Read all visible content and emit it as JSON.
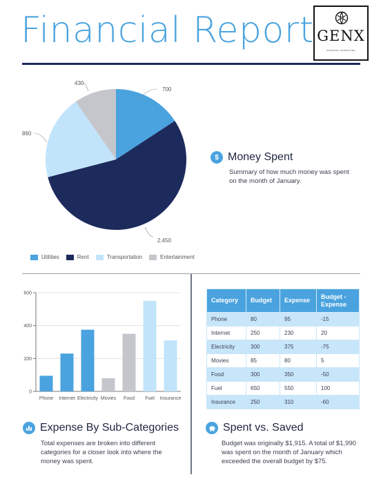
{
  "header": {
    "title": "Financial Report",
    "logo_text": "GENX",
    "logo_subtext": "FINANCIAL CONSULTING"
  },
  "colors": {
    "accent": "#4aa3df",
    "navy": "#1d2a5c",
    "light_blue": "#c1e4fb",
    "gray": "#c5c6cc"
  },
  "money_spent": {
    "icon": "dollar-icon",
    "title": "Money Spent",
    "description": "Summary of how much money was spent on the month of January."
  },
  "expense_section": {
    "icon": "bar-chart-icon",
    "title": "Expense By Sub-Categories",
    "description": "Total expenses are broken into different categories for a closer look into where the money was spent."
  },
  "saved_section": {
    "icon": "piggy-bank-icon",
    "title": "Spent vs. Saved",
    "description": "Budget was originally $1,915. A total of $1,990 was spent on the month of January which exceeded the overall budget by $75."
  },
  "chart_data": [
    {
      "type": "pie",
      "categories": [
        "Utilities",
        "Rent",
        "Transportation",
        "Entertainment"
      ],
      "values": [
        700,
        2450,
        860,
        430
      ],
      "value_labels": [
        "700",
        "2,450",
        "860",
        "430"
      ],
      "colors": [
        "#4aa3df",
        "#1d2a5c",
        "#c1e4fb",
        "#c5c6cc"
      ],
      "legend_position": "bottom"
    },
    {
      "type": "bar",
      "categories": [
        "Phone",
        "Internet",
        "Electricity",
        "Movies",
        "Food",
        "Fuel",
        "Insurance"
      ],
      "values": [
        95,
        230,
        375,
        80,
        350,
        550,
        310
      ],
      "colors": [
        "#4aa3df",
        "#4aa3df",
        "#4aa3df",
        "#c5c6cc",
        "#c5c6cc",
        "#c1e4fb",
        "#c1e4fb"
      ],
      "ylim": [
        0,
        600
      ],
      "yticks": [
        0,
        200,
        400,
        600
      ],
      "grid": true
    }
  ],
  "budget_table": {
    "headers": [
      "Category",
      "Budget",
      "Expense",
      "Budget - Expense"
    ],
    "rows": [
      [
        "Phone",
        "80",
        "95",
        "-15"
      ],
      [
        "Internet",
        "250",
        "230",
        "20"
      ],
      [
        "Electricity",
        "300",
        "375",
        "-75"
      ],
      [
        "Movies",
        "85",
        "80",
        "5"
      ],
      [
        "Food",
        "300",
        "350",
        "-50"
      ],
      [
        "Fuel",
        "650",
        "550",
        "100"
      ],
      [
        "Insurance",
        "250",
        "310",
        "-60"
      ]
    ]
  }
}
